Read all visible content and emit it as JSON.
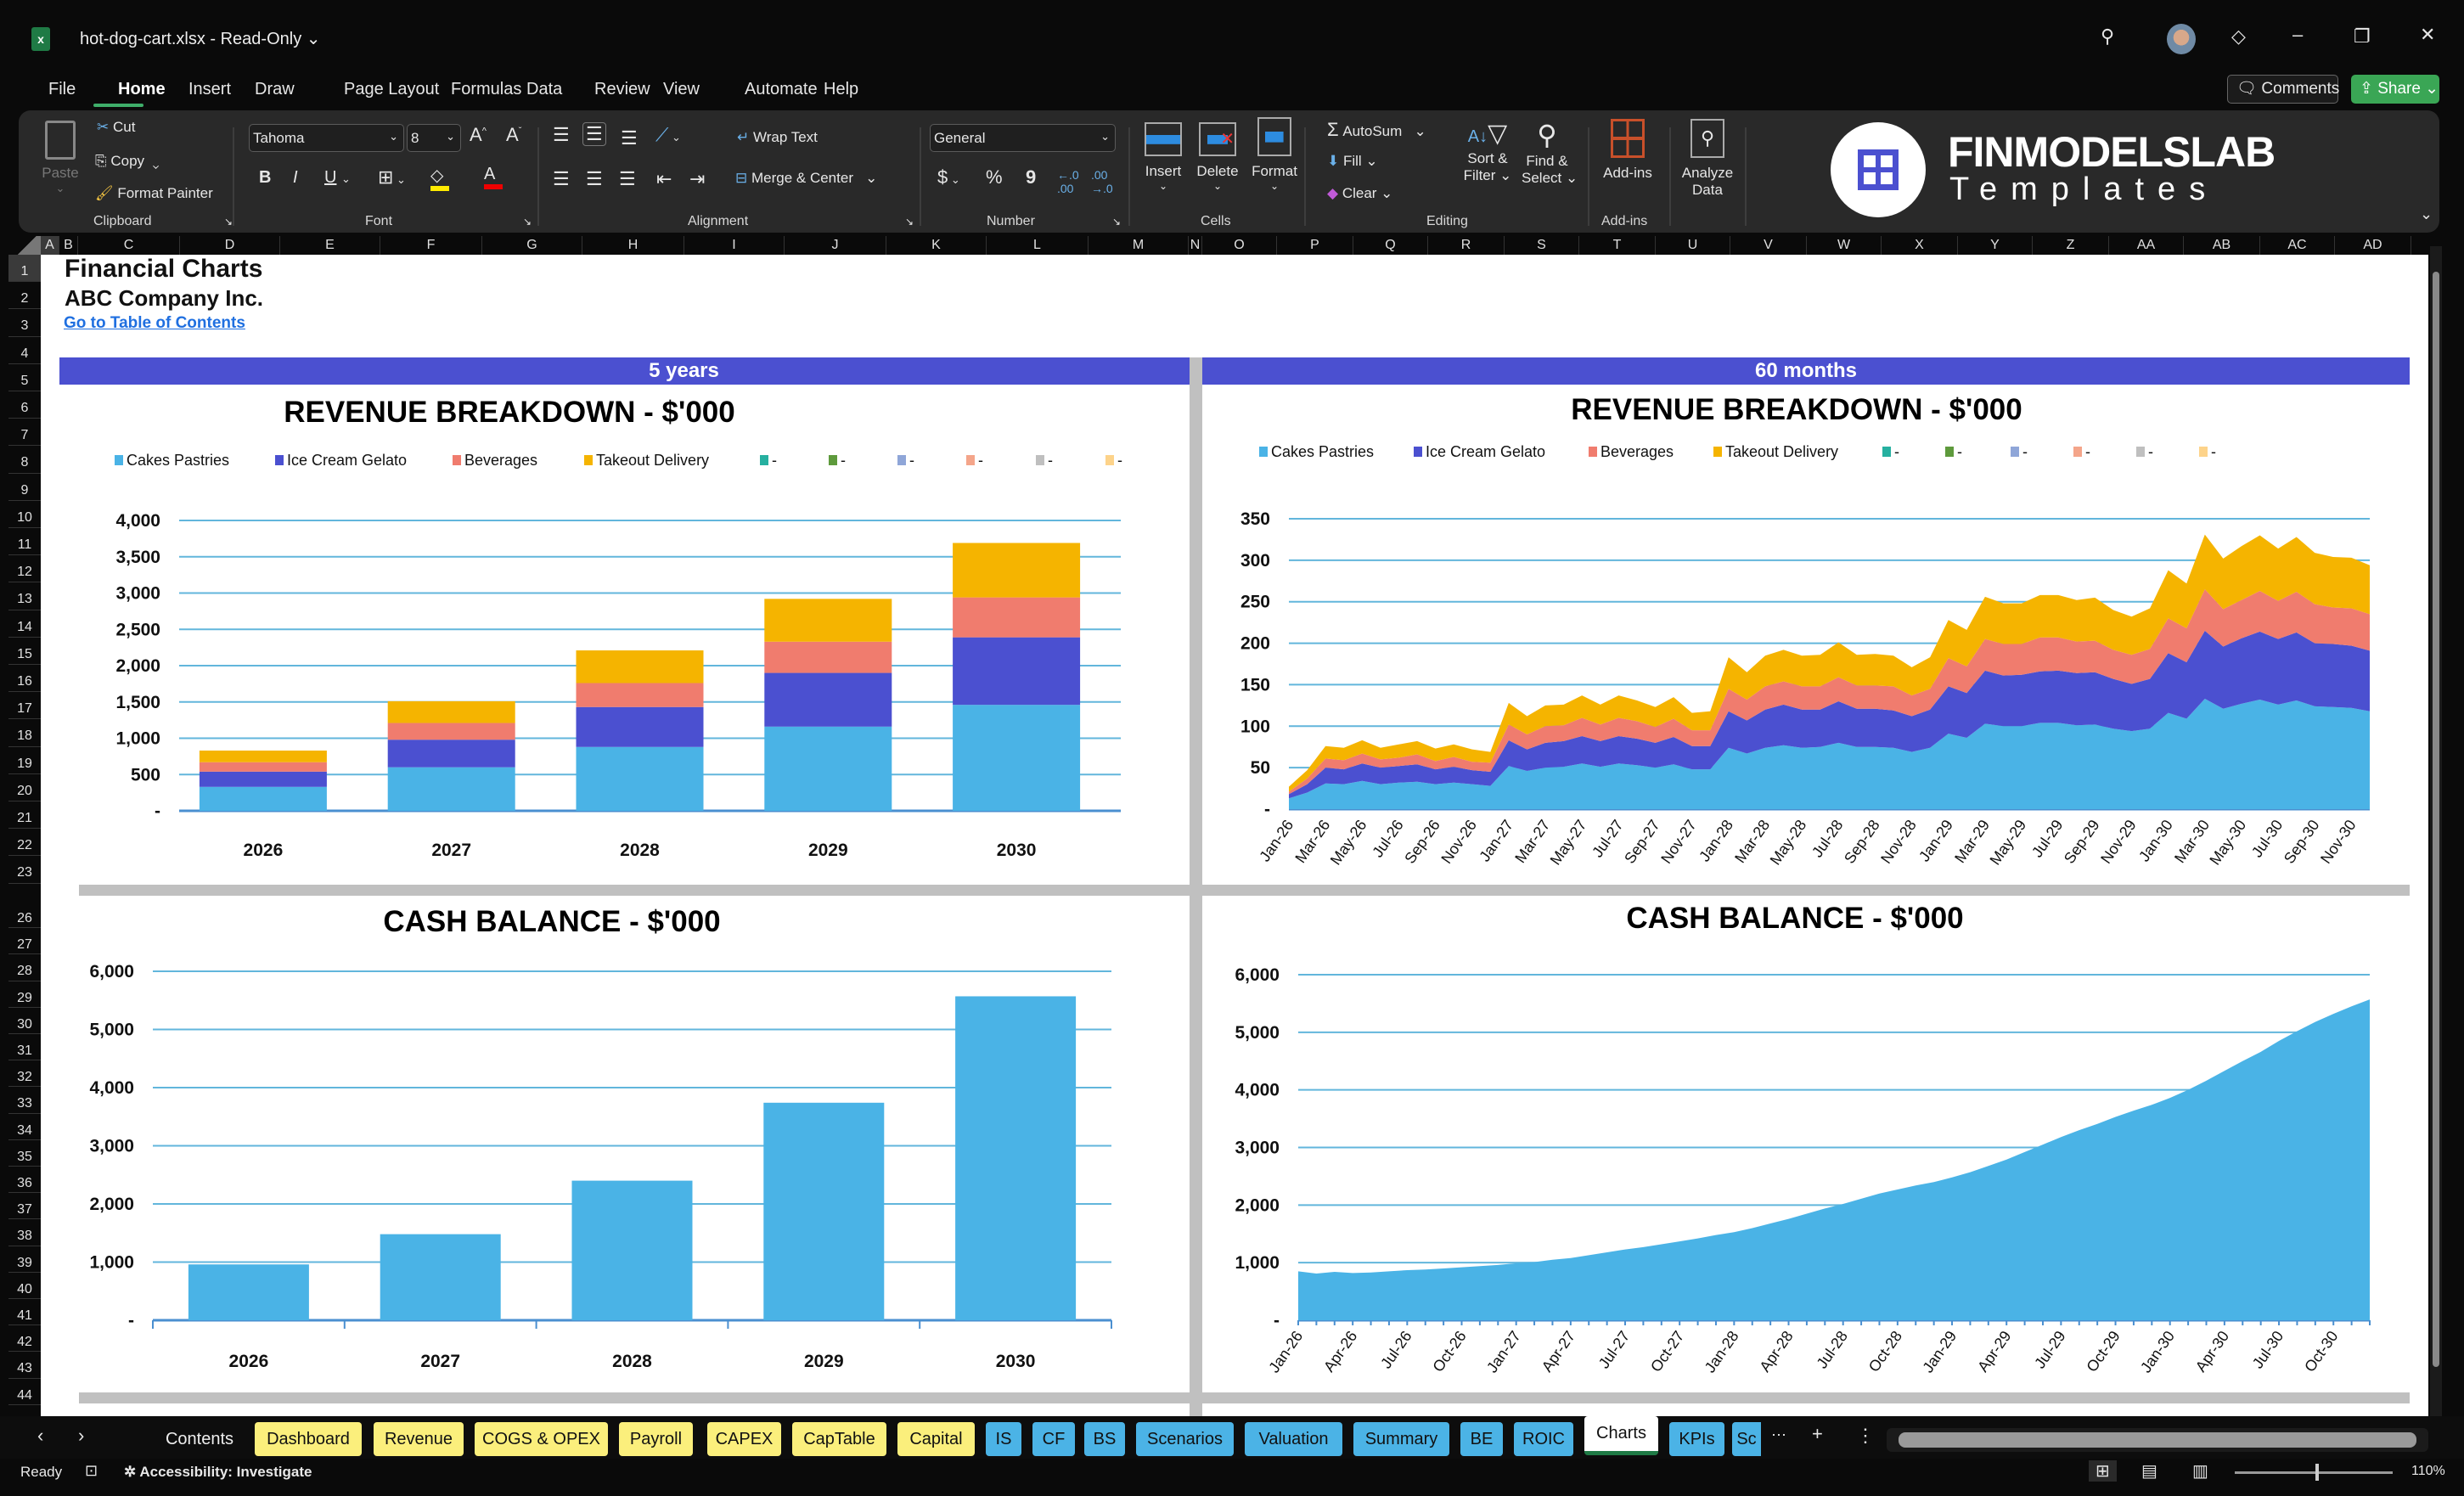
{
  "window": {
    "title": "hot-dog-cart.xlsx  -  Read-Only",
    "title_chevron": "⌄"
  },
  "menu": [
    "File",
    "Home",
    "Insert",
    "Draw",
    "Page Layout",
    "Formulas",
    "Data",
    "Review",
    "View",
    "Automate",
    "Help"
  ],
  "header_buttons": {
    "comments": "Comments",
    "share": "Share"
  },
  "ribbon": {
    "clipboard": {
      "paste": "Paste",
      "cut": "Cut",
      "copy": "Copy",
      "format_painter": "Format Painter",
      "label": "Clipboard"
    },
    "font": {
      "name": "Tahoma",
      "size": "8",
      "bold": "B",
      "italic": "I",
      "underline": "U",
      "label": "Font"
    },
    "alignment": {
      "wrap": "Wrap Text",
      "merge": "Merge & Center",
      "label": "Alignment"
    },
    "number": {
      "format": "General",
      "currency": "$",
      "percent": "%",
      "comma": "9",
      "label": "Number"
    },
    "cells": {
      "insert": "Insert",
      "delete": "Delete",
      "format": "Format",
      "label": "Cells"
    },
    "editing": {
      "autosum": "AutoSum",
      "fill": "Fill",
      "clear": "Clear",
      "sort1": "Sort &",
      "sort2": "Filter",
      "find1": "Find &",
      "find2": "Select",
      "label": "Editing"
    },
    "addins": {
      "addins": "Add-ins",
      "analyze1": "Analyze",
      "analyze2": "Data",
      "label": "Add-ins"
    },
    "logo": {
      "line1": "FINMODELSLAB",
      "line2": "Templates"
    }
  },
  "columns": [
    "A",
    "B",
    "C",
    "D",
    "E",
    "F",
    "G",
    "H",
    "I",
    "J",
    "K",
    "L",
    "M",
    "N",
    "O",
    "P",
    "Q",
    "R",
    "S",
    "T",
    "U",
    "V",
    "W",
    "X",
    "Y",
    "Z",
    "AA",
    "AB",
    "AC",
    "AD"
  ],
  "rows": [
    "1",
    "2",
    "3",
    "4",
    "5",
    "6",
    "7",
    "8",
    "9",
    "10",
    "11",
    "12",
    "13",
    "14",
    "15",
    "16",
    "17",
    "18",
    "19",
    "20",
    "21",
    "22",
    "23",
    "26",
    "27",
    "28",
    "29",
    "30",
    "31",
    "32",
    "33",
    "34",
    "35",
    "36",
    "37",
    "38",
    "39",
    "40",
    "41",
    "42",
    "43",
    "44"
  ],
  "sheet": {
    "title": "Financial Charts",
    "company": "ABC Company Inc.",
    "toc_link": "Go to Table of Contents",
    "band_left": "5 years",
    "band_right": "60 months"
  },
  "colors": {
    "band": "#4b50d0",
    "cakes": "#4ab3e6",
    "ice": "#4b50d0",
    "bev": "#f07c6e",
    "takeout": "#f5b400"
  },
  "legend": [
    {
      "name": "Cakes Pastries",
      "color": "#4ab3e6"
    },
    {
      "name": "Ice Cream Gelato",
      "color": "#4b50d0"
    },
    {
      "name": "Beverages",
      "color": "#f07c6e"
    },
    {
      "name": "Takeout Delivery",
      "color": "#f5b400"
    },
    {
      "name": "-",
      "color": "#26b0a0"
    },
    {
      "name": "-",
      "color": "#5e9a3c"
    },
    {
      "name": "-",
      "color": "#8fa6d8"
    },
    {
      "name": "-",
      "color": "#f4a58a"
    },
    {
      "name": "-",
      "color": "#bfbfbf"
    },
    {
      "name": "-",
      "color": "#fdd38a"
    }
  ],
  "chart_data": [
    {
      "type": "bar",
      "stacked": true,
      "title": "REVENUE BREAKDOWN - $'000",
      "categories": [
        "2026",
        "2027",
        "2028",
        "2029",
        "2030"
      ],
      "ylim": [
        0,
        4000
      ],
      "yticks": [
        "-",
        "500",
        "1,000",
        "1,500",
        "2,000",
        "2,500",
        "3,000",
        "3,500",
        "4,000"
      ],
      "grid": true,
      "legend_position": "top",
      "series": [
        {
          "name": "Cakes Pastries",
          "values": [
            330,
            600,
            880,
            1160,
            1460
          ]
        },
        {
          "name": "Ice Cream Gelato",
          "values": [
            210,
            380,
            550,
            740,
            930
          ]
        },
        {
          "name": "Beverages",
          "values": [
            130,
            230,
            330,
            430,
            550
          ]
        },
        {
          "name": "Takeout Delivery",
          "values": [
            160,
            300,
            450,
            590,
            750
          ]
        }
      ]
    },
    {
      "type": "area",
      "stacked": true,
      "title": "REVENUE BREAKDOWN - $'000",
      "ylim": [
        0,
        350
      ],
      "yticks": [
        "-",
        "50",
        "100",
        "150",
        "200",
        "250",
        "300",
        "350"
      ],
      "grid": true,
      "legend_position": "top",
      "x": [
        "Jan-26",
        "Feb-26",
        "Mar-26",
        "Apr-26",
        "May-26",
        "Jun-26",
        "Jul-26",
        "Aug-26",
        "Sep-26",
        "Oct-26",
        "Nov-26",
        "Dec-26",
        "Jan-27",
        "Feb-27",
        "Mar-27",
        "Apr-27",
        "May-27",
        "Jun-27",
        "Jul-27",
        "Aug-27",
        "Sep-27",
        "Oct-27",
        "Nov-27",
        "Dec-27",
        "Jan-28",
        "Feb-28",
        "Mar-28",
        "Apr-28",
        "May-28",
        "Jun-28",
        "Jul-28",
        "Aug-28",
        "Sep-28",
        "Oct-28",
        "Nov-28",
        "Dec-28",
        "Jan-29",
        "Feb-29",
        "Mar-29",
        "Apr-29",
        "May-29",
        "Jun-29",
        "Jul-29",
        "Aug-29",
        "Sep-29",
        "Oct-29",
        "Nov-29",
        "Dec-29",
        "Jan-30",
        "Feb-30",
        "Mar-30",
        "Apr-30",
        "May-30",
        "Jun-30",
        "Jul-30",
        "Aug-30",
        "Sep-30",
        "Oct-30",
        "Nov-30",
        "Dec-30"
      ],
      "series": [
        {
          "name": "Cakes Pastries",
          "values": [
            13,
            20,
            31,
            30,
            34,
            30,
            32,
            33,
            30,
            32,
            30,
            28,
            52,
            46,
            50,
            51,
            55,
            51,
            55,
            53,
            50,
            54,
            48,
            48,
            74,
            67,
            74,
            77,
            74,
            75,
            80,
            75,
            75,
            74,
            69,
            74,
            91,
            86,
            103,
            100,
            100,
            104,
            104,
            101,
            102,
            97,
            94,
            97,
            116,
            109,
            133,
            121,
            127,
            132,
            126,
            131,
            124,
            123,
            122,
            118
          ]
        },
        {
          "name": "Ice Cream Gelato",
          "values": [
            5,
            10,
            19,
            18,
            21,
            20,
            20,
            21,
            18,
            19,
            17,
            17,
            31,
            26,
            30,
            31,
            33,
            31,
            33,
            32,
            30,
            33,
            28,
            28,
            44,
            40,
            46,
            49,
            46,
            45,
            50,
            46,
            46,
            45,
            43,
            46,
            57,
            54,
            64,
            61,
            62,
            62,
            63,
            63,
            63,
            60,
            57,
            60,
            72,
            68,
            82,
            75,
            79,
            82,
            79,
            82,
            76,
            76,
            75,
            73
          ]
        },
        {
          "name": "Beverages",
          "values": [
            3,
            7,
            11,
            11,
            12,
            10,
            10,
            12,
            10,
            12,
            10,
            11,
            19,
            18,
            20,
            19,
            22,
            20,
            22,
            21,
            19,
            22,
            19,
            19,
            27,
            25,
            28,
            28,
            28,
            28,
            29,
            28,
            28,
            29,
            25,
            25,
            34,
            32,
            38,
            38,
            37,
            41,
            40,
            38,
            38,
            35,
            35,
            36,
            42,
            41,
            50,
            45,
            46,
            49,
            46,
            49,
            47,
            44,
            45,
            44
          ]
        },
        {
          "name": "Takeout Delivery",
          "values": [
            6,
            10,
            15,
            15,
            16,
            14,
            16,
            16,
            15,
            15,
            15,
            13,
            26,
            22,
            25,
            25,
            27,
            24,
            27,
            25,
            24,
            26,
            21,
            23,
            38,
            33,
            37,
            38,
            37,
            38,
            42,
            37,
            38,
            37,
            34,
            38,
            46,
            44,
            51,
            49,
            49,
            51,
            51,
            50,
            52,
            48,
            46,
            49,
            58,
            54,
            66,
            61,
            65,
            67,
            63,
            66,
            62,
            61,
            61,
            59
          ]
        }
      ]
    },
    {
      "type": "bar",
      "title": "CASH BALANCE - $'000",
      "categories": [
        "2026",
        "2027",
        "2028",
        "2029",
        "2030"
      ],
      "values": [
        960,
        1480,
        2400,
        3740,
        5570
      ],
      "ylim": [
        0,
        6000
      ],
      "yticks": [
        "-",
        "1,000",
        "2,000",
        "3,000",
        "4,000",
        "5,000",
        "6,000"
      ],
      "grid": true
    },
    {
      "type": "area",
      "title": "CASH BALANCE - $'000",
      "ylim": [
        0,
        6000
      ],
      "yticks": [
        "-",
        "1,000",
        "2,000",
        "3,000",
        "4,000",
        "5,000",
        "6,000"
      ],
      "grid": true,
      "values": [
        850,
        810,
        840,
        820,
        830,
        850,
        870,
        880,
        900,
        920,
        940,
        960,
        990,
        1010,
        1050,
        1080,
        1130,
        1180,
        1230,
        1270,
        1320,
        1370,
        1420,
        1480,
        1530,
        1600,
        1680,
        1760,
        1850,
        1940,
        2020,
        2110,
        2200,
        2270,
        2340,
        2400,
        2480,
        2570,
        2680,
        2790,
        2920,
        3050,
        3180,
        3300,
        3410,
        3530,
        3640,
        3740,
        3860,
        4000,
        4160,
        4330,
        4500,
        4660,
        4850,
        5020,
        5180,
        5320,
        5450,
        5570
      ]
    }
  ],
  "sheet_tabs": [
    {
      "label": "Contents",
      "style": "plain"
    },
    {
      "label": "Dashboard",
      "style": "yellow"
    },
    {
      "label": "Revenue",
      "style": "yellow"
    },
    {
      "label": "COGS & OPEX",
      "style": "yellow"
    },
    {
      "label": "Payroll",
      "style": "yellow"
    },
    {
      "label": "CAPEX",
      "style": "yellow"
    },
    {
      "label": "CapTable",
      "style": "yellow"
    },
    {
      "label": "Capital",
      "style": "yellow"
    },
    {
      "label": "IS",
      "style": "blue"
    },
    {
      "label": "CF",
      "style": "blue"
    },
    {
      "label": "BS",
      "style": "blue"
    },
    {
      "label": "Scenarios",
      "style": "blue"
    },
    {
      "label": "Valuation",
      "style": "blue"
    },
    {
      "label": "Summary",
      "style": "blue"
    },
    {
      "label": "BE",
      "style": "blue"
    },
    {
      "label": "ROIC",
      "style": "blue"
    },
    {
      "label": "Charts",
      "style": "active"
    },
    {
      "label": "KPIs",
      "style": "blue"
    },
    {
      "label": "Sc",
      "style": "blue"
    }
  ],
  "status": {
    "ready": "Ready",
    "accessibility": "Accessibility: Investigate",
    "zoom": "110%"
  }
}
